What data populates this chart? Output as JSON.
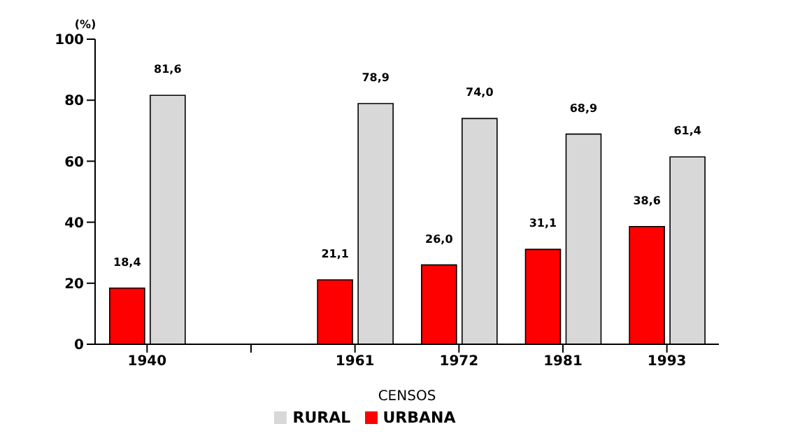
{
  "chart_data": {
    "type": "bar",
    "ylabel": "(%)",
    "xlabel": "CENSOS",
    "categories": [
      "1940",
      null,
      "1961",
      "1972",
      "1981",
      "1993"
    ],
    "series": [
      {
        "name": "URBANA",
        "color": "#ff0000",
        "values": [
          18.4,
          null,
          21.1,
          26.0,
          31.1,
          38.6
        ],
        "value_labels": [
          "18,4",
          null,
          "21,1",
          "26,0",
          "31,1",
          "38,6"
        ]
      },
      {
        "name": "RURAL",
        "color": "#d8d8d8",
        "values": [
          81.6,
          null,
          78.9,
          74.0,
          68.9,
          61.4
        ],
        "value_labels": [
          "81,6",
          null,
          "78,9",
          "74,0",
          "68,9",
          "61,4"
        ]
      }
    ],
    "ylim": [
      0,
      100
    ],
    "yticks": [
      0,
      20,
      40,
      60,
      80,
      100
    ],
    "grid": false,
    "legend": "bottom"
  }
}
